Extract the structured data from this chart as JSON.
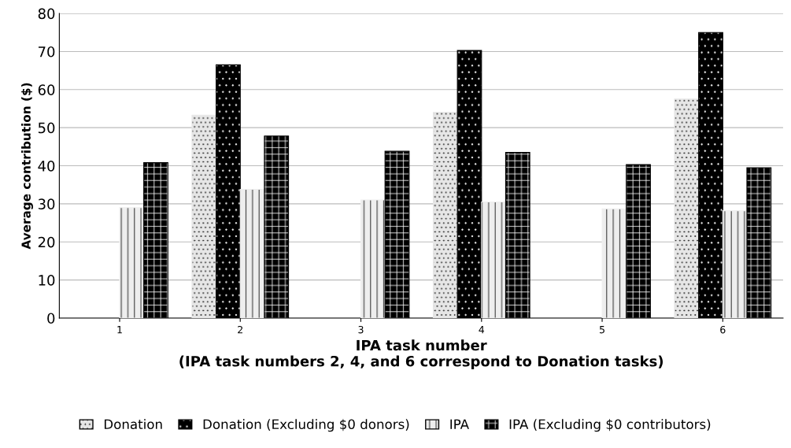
{
  "chart_data": {
    "type": "bar",
    "categories": [
      "1",
      "2",
      "3",
      "4",
      "5",
      "6"
    ],
    "xlabel": "IPA task number\n(IPA task numbers 2, 4, and 6 correspond to Donation tasks)",
    "ylabel": "Average contribution ($)",
    "ylim": [
      0,
      80
    ],
    "yticks": [
      0,
      10,
      20,
      30,
      40,
      50,
      60,
      70,
      80
    ],
    "grid": "y",
    "legend": "bottom",
    "series": [
      {
        "name": "Donation",
        "color": "#e6e6e6",
        "values": [
          null,
          53.3,
          null,
          54,
          null,
          57.5
        ]
      },
      {
        "name": "Donation (Excluding $0 donors)",
        "color": "#000000",
        "values": [
          null,
          66.5,
          null,
          70.3,
          null,
          75
        ]
      },
      {
        "name": "IPA",
        "color": "#eeeeee",
        "values": [
          29,
          33.8,
          31,
          30.5,
          28.7,
          28.2
        ]
      },
      {
        "name": "IPA (Excluding $0 contributors)",
        "color": "#000000",
        "values": [
          40.8,
          47.8,
          43.8,
          43.5,
          40.3,
          39.5
        ]
      }
    ]
  }
}
